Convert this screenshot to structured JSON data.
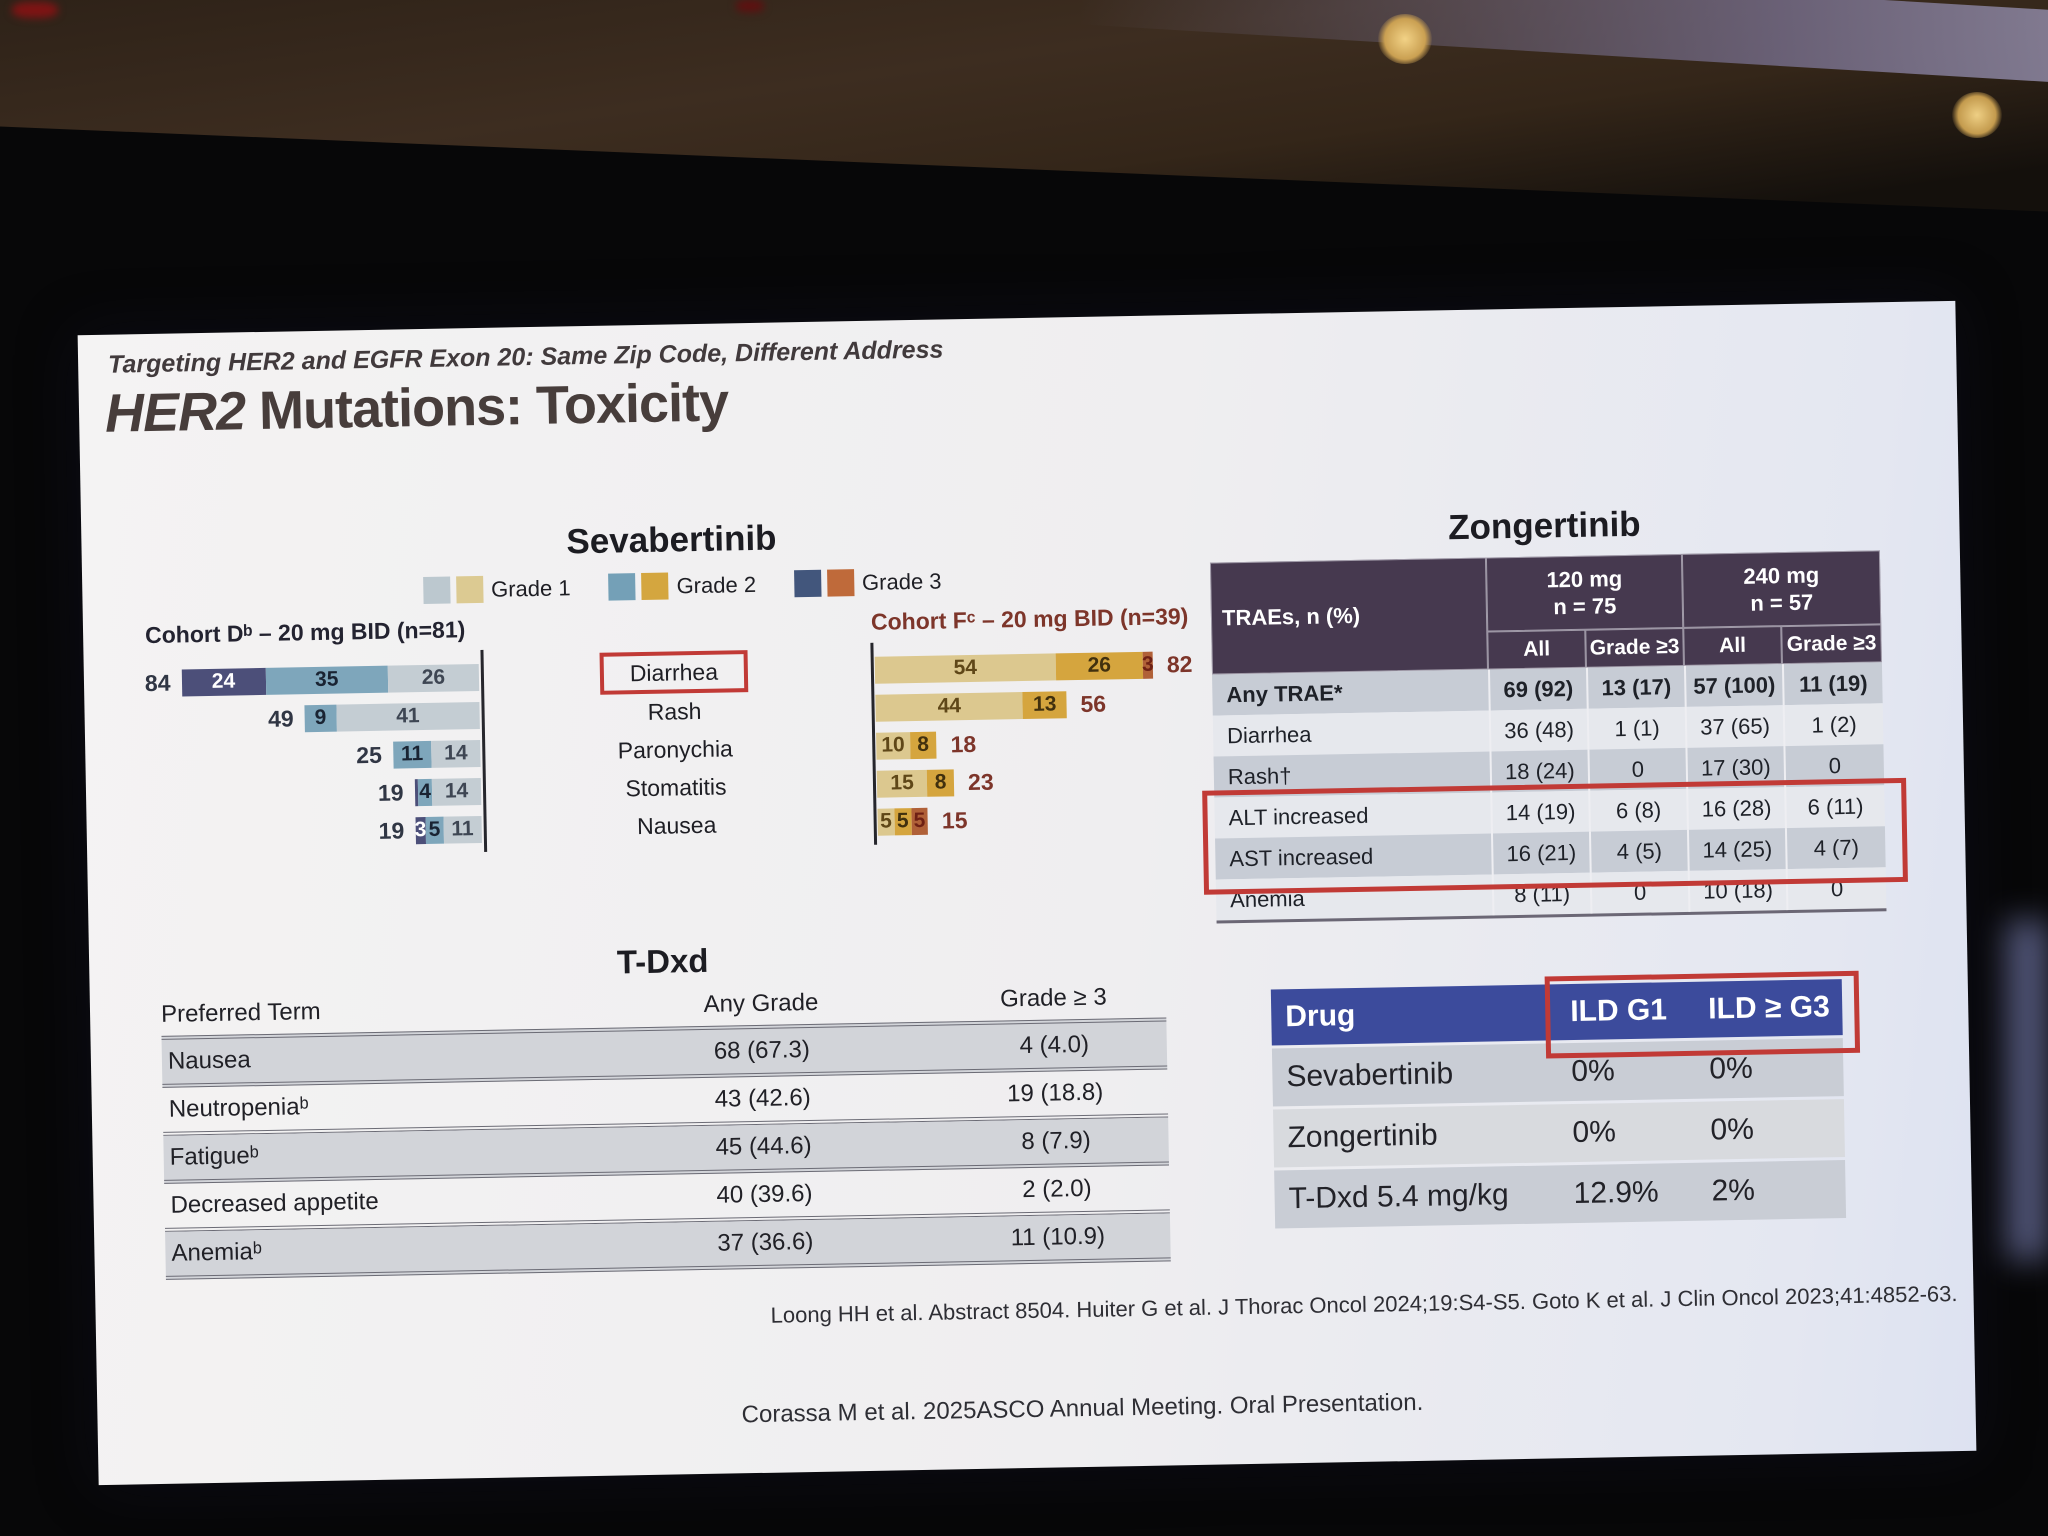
{
  "slide": {
    "kicker": "Targeting HER2 and EGFR Exon 20: Same Zip Code, Different Address",
    "title_em": "HER2",
    "title_rest": " Mutations: Toxicity",
    "citation": "Loong HH et al. Abstract 8504. Huiter G et al. J Thorac Oncol 2024;19:S4-S5. Goto K et al. J Clin Oncol 2023;41:4852-63.",
    "footer": "Corassa M et al. 2025ASCO Annual Meeting. Oral Presentation."
  },
  "sevabertinib": {
    "title": "Sevabertinib",
    "legend": [
      {
        "label": "Grade 1",
        "cohort_d_color": "#bcc8cf",
        "cohort_f_color": "#dcca92"
      },
      {
        "label": "Grade 2",
        "cohort_d_color": "#74a0b7",
        "cohort_f_color": "#d4a63f"
      },
      {
        "label": "Grade 3",
        "cohort_d_color": "#42567c",
        "cohort_f_color": "#bf6a3a"
      }
    ],
    "events": [
      "Diarrhea",
      "Rash",
      "Paronychia",
      "Stomatitis",
      "Nausea"
    ],
    "highlighted_event_index": 0,
    "cohort_d": {
      "label": "Cohort Dᵇ – 20 mg BID (n=81)"
    },
    "cohort_f": {
      "label": "Cohort Fᶜ – 20 mg BID (n=39)"
    }
  },
  "chart_data": [
    {
      "type": "bar",
      "title": "Sevabertinib Cohort Db – 20 mg BID (n=81)",
      "orientation": "horizontal",
      "stacked": true,
      "bar_alignment": "right",
      "categories": [
        "Diarrhea",
        "Rash",
        "Paronychia",
        "Stomatitis",
        "Nausea"
      ],
      "series": [
        {
          "name": "Grade 3",
          "values": [
            24,
            0,
            0,
            1,
            3
          ],
          "labels": [
            "24",
            "",
            "",
            "",
            "3"
          ],
          "color": "#4c4f79",
          "label_color": "#ffffff"
        },
        {
          "name": "Grade 2",
          "values": [
            35,
            9,
            11,
            4,
            5
          ],
          "labels": [
            "35",
            "9",
            "11",
            "4",
            "5"
          ],
          "color": "#7ea6bb",
          "label_color": "#1a2433"
        },
        {
          "name": "Grade 1",
          "values": [
            26,
            41,
            14,
            14,
            11
          ],
          "labels": [
            "26",
            "41",
            "14",
            "14",
            "11"
          ],
          "color": "#c4cdd3",
          "label_color": "#3e4653"
        }
      ],
      "totals": [
        84,
        49,
        25,
        19,
        19
      ],
      "total_labels": [
        "84",
        "49",
        "25",
        "19",
        "19"
      ],
      "legend_position": "top",
      "grid": false
    },
    {
      "type": "bar",
      "title": "Sevabertinib Cohort Fc – 20 mg BID (n=39)",
      "orientation": "horizontal",
      "stacked": true,
      "bar_alignment": "left",
      "categories": [
        "Diarrhea",
        "Rash",
        "Paronychia",
        "Stomatitis",
        "Nausea"
      ],
      "series": [
        {
          "name": "Grade 1",
          "values": [
            54,
            44,
            10,
            15,
            5
          ],
          "labels": [
            "54",
            "44",
            "10",
            "15",
            "5"
          ],
          "color": "#dcc88f",
          "label_color": "#5f4718"
        },
        {
          "name": "Grade 2",
          "values": [
            26,
            13,
            8,
            8,
            5
          ],
          "labels": [
            "26",
            "13",
            "8",
            "8",
            "5"
          ],
          "color": "#d5a53e",
          "label_color": "#41300e"
        },
        {
          "name": "Grade 3",
          "values": [
            3,
            0,
            0,
            0,
            5
          ],
          "labels": [
            "3",
            "",
            "",
            "",
            "5"
          ],
          "color": "#b06038",
          "label_color": "#6e2014"
        }
      ],
      "totals": [
        82,
        56,
        18,
        23,
        15
      ],
      "total_labels": [
        "82",
        "56",
        "18",
        "23",
        "15"
      ],
      "legend_position": "top",
      "grid": false
    }
  ],
  "zongertinib": {
    "title": "Zongertinib",
    "row_header": "TRAEs, n (%)",
    "col_groups": [
      {
        "label": "120 mg",
        "sub": "n = 75"
      },
      {
        "label": "240 mg",
        "sub": "n = 57"
      }
    ],
    "sub_columns": [
      "All",
      "Grade ≥3",
      "All",
      "Grade ≥3"
    ],
    "rows": [
      {
        "label": "Any TRAE*",
        "values": [
          "69 (92)",
          "13 (17)",
          "57 (100)",
          "11 (19)"
        ],
        "bold": true,
        "highlighted": false
      },
      {
        "label": "Diarrhea",
        "values": [
          "36 (48)",
          "1 (1)",
          "37 (65)",
          "1 (2)"
        ],
        "bold": false,
        "highlighted": false
      },
      {
        "label": "Rash†",
        "values": [
          "18 (24)",
          "0",
          "17 (30)",
          "0"
        ],
        "bold": false,
        "highlighted": false
      },
      {
        "label": "ALT increased",
        "values": [
          "14 (19)",
          "6 (8)",
          "16 (28)",
          "6 (11)"
        ],
        "bold": false,
        "highlighted": true
      },
      {
        "label": "AST increased",
        "values": [
          "16 (21)",
          "4 (5)",
          "14 (25)",
          "4 (7)"
        ],
        "bold": false,
        "highlighted": true
      },
      {
        "label": "Anemia",
        "values": [
          "8 (11)",
          "0",
          "10 (18)",
          "0"
        ],
        "bold": false,
        "highlighted": false
      }
    ]
  },
  "tdxd": {
    "title": "T-Dxd",
    "columns": [
      "Preferred Term",
      "Any Grade",
      "Grade ≥ 3"
    ],
    "rows": [
      {
        "term": "Nausea",
        "any_grade": "68 (67.3)",
        "grade_ge3": "4 (4.0)"
      },
      {
        "term": "Neutropeniaᵇ",
        "any_grade": "43 (42.6)",
        "grade_ge3": "19 (18.8)"
      },
      {
        "term": "Fatigueᵇ",
        "any_grade": "45 (44.6)",
        "grade_ge3": "8 (7.9)"
      },
      {
        "term": "Decreased appetite",
        "any_grade": "40 (39.6)",
        "grade_ge3": "2 (2.0)"
      },
      {
        "term": "Anemiaᵇ",
        "any_grade": "37 (36.6)",
        "grade_ge3": "11 (10.9)"
      }
    ]
  },
  "ild": {
    "columns": [
      "Drug",
      "ILD G1",
      "ILD ≥ G3"
    ],
    "rows": [
      {
        "drug": "Sevabertinib",
        "g1": "0%",
        "ge3": "0%"
      },
      {
        "drug": "Zongertinib",
        "g1": "0%",
        "ge3": "0%"
      },
      {
        "drug": "T-Dxd 5.4 mg/kg",
        "g1": "12.9%",
        "ge3": "2%"
      }
    ]
  },
  "colors": {
    "annotation_red": "#c13a36",
    "zongertinib_header": "#46394f",
    "ild_header": "#3c4b9c"
  }
}
